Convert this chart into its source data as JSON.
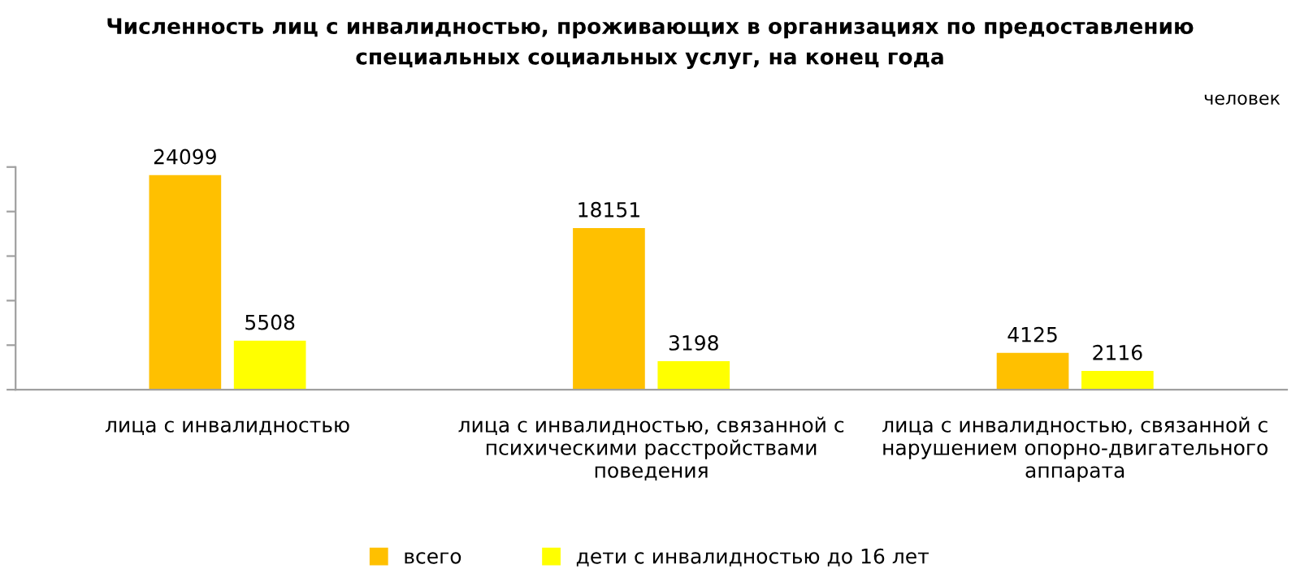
{
  "chart_data": {
    "type": "bar",
    "title": "Численность лиц с инвалидностью, проживающих в организациях по предоставлению специальных социальных услуг, на конец года",
    "annotations": [
      "человек"
    ],
    "categories": [
      "лица с инвалидностью",
      "лица с инвалидностью, связанной с психическими расстройствами поведения",
      "лица с инвалидностью, связанной с нарушением опорно-двигательного аппарата"
    ],
    "series": [
      {
        "name": "всего",
        "color": "#ffc000",
        "values": [
          24099,
          18151,
          4125
        ]
      },
      {
        "name": "дети с инвалидностью до 16 лет",
        "color": "#ffff00",
        "values": [
          5508,
          3198,
          2116
        ]
      }
    ],
    "ylim": [
      0,
      25000
    ],
    "yticks": [
      {
        "value": 0,
        "label": null
      },
      {
        "value": 5000,
        "label": null
      },
      {
        "value": 10000,
        "label": null
      },
      {
        "value": 15000,
        "label": null
      },
      {
        "value": 20000,
        "label": null
      },
      {
        "value": 25000,
        "label": null
      }
    ],
    "tick_labels": "x",
    "data_labels": true,
    "grid": false,
    "legend": "bottom"
  }
}
